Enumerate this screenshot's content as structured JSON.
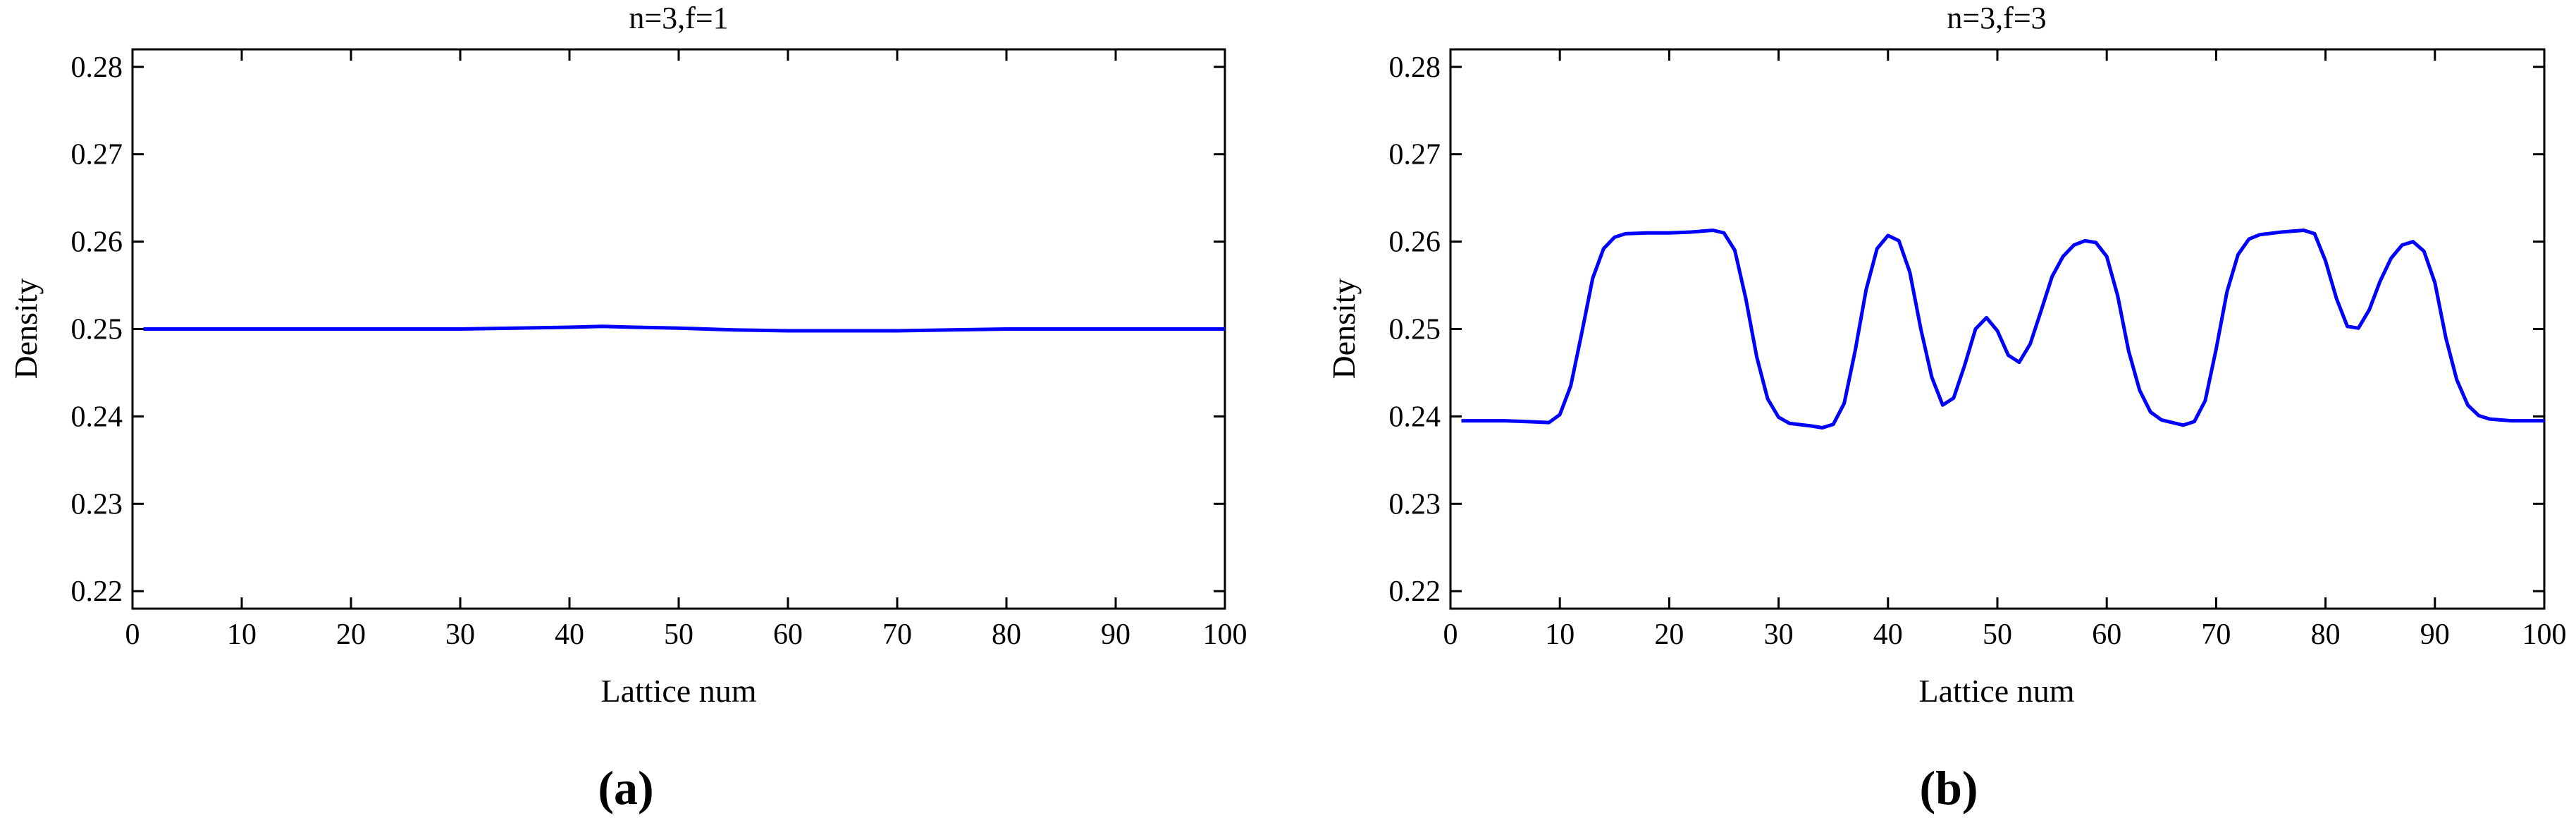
{
  "chart_data": [
    {
      "type": "line",
      "panel_label": "(a)",
      "title": "n=3,f=1",
      "xlabel": "Lattice num",
      "ylabel": "Density",
      "xlim": [
        0,
        100
      ],
      "ylim": [
        0.218,
        0.282
      ],
      "xticks": [
        0,
        10,
        20,
        30,
        40,
        50,
        60,
        70,
        80,
        90,
        100
      ],
      "yticks": [
        0.22,
        0.23,
        0.24,
        0.25,
        0.26,
        0.27,
        0.28
      ],
      "grid": false,
      "line_color": "#0000ff",
      "x": [
        1,
        10,
        20,
        30,
        35,
        40,
        43,
        46,
        50,
        55,
        60,
        65,
        70,
        75,
        80,
        90,
        100
      ],
      "y": [
        0.25,
        0.25,
        0.25,
        0.25,
        0.2501,
        0.2502,
        0.2503,
        0.2502,
        0.2501,
        0.2499,
        0.2498,
        0.2498,
        0.2498,
        0.2499,
        0.25,
        0.25,
        0.25
      ]
    },
    {
      "type": "line",
      "panel_label": "(b)",
      "title": "n=3,f=3",
      "xlabel": "Lattice num",
      "ylabel": "Density",
      "xlim": [
        0,
        100
      ],
      "ylim": [
        0.218,
        0.282
      ],
      "xticks": [
        0,
        10,
        20,
        30,
        40,
        50,
        60,
        70,
        80,
        90,
        100
      ],
      "yticks": [
        0.22,
        0.23,
        0.24,
        0.25,
        0.26,
        0.27,
        0.28
      ],
      "grid": false,
      "line_color": "#0000ff",
      "x": [
        1,
        5,
        7,
        9,
        10,
        11,
        12,
        13,
        14,
        15,
        16,
        18,
        20,
        22,
        24,
        25,
        26,
        27,
        28,
        29,
        30,
        31,
        33,
        34,
        35,
        36,
        37,
        38,
        39,
        40,
        41,
        42,
        43,
        44,
        45,
        46,
        47,
        48,
        49,
        50,
        51,
        52,
        53,
        54,
        55,
        56,
        57,
        58,
        59,
        60,
        61,
        62,
        63,
        64,
        65,
        67,
        68,
        69,
        70,
        71,
        72,
        73,
        74,
        76,
        78,
        79,
        80,
        81,
        82,
        83,
        84,
        85,
        86,
        87,
        88,
        89,
        90,
        91,
        92,
        93,
        94,
        95,
        97,
        100
      ],
      "y": [
        0.2395,
        0.2395,
        0.2394,
        0.2393,
        0.2402,
        0.2435,
        0.2495,
        0.2558,
        0.2592,
        0.2605,
        0.2609,
        0.261,
        0.261,
        0.2611,
        0.2613,
        0.261,
        0.259,
        0.2535,
        0.2468,
        0.242,
        0.2399,
        0.2392,
        0.2389,
        0.2387,
        0.2391,
        0.2415,
        0.2475,
        0.2545,
        0.2592,
        0.2607,
        0.2601,
        0.2565,
        0.25,
        0.2445,
        0.2413,
        0.2421,
        0.2458,
        0.25,
        0.2513,
        0.2498,
        0.247,
        0.2462,
        0.2483,
        0.2521,
        0.256,
        0.2583,
        0.2596,
        0.2601,
        0.2599,
        0.2583,
        0.2538,
        0.2475,
        0.243,
        0.2405,
        0.2396,
        0.239,
        0.2394,
        0.2418,
        0.2477,
        0.2543,
        0.2585,
        0.2603,
        0.2608,
        0.2611,
        0.2613,
        0.2609,
        0.2578,
        0.2535,
        0.2503,
        0.2501,
        0.2522,
        0.2555,
        0.2581,
        0.2596,
        0.26,
        0.2589,
        0.2553,
        0.249,
        0.2442,
        0.2413,
        0.2401,
        0.2397,
        0.2395,
        0.2395
      ]
    }
  ]
}
